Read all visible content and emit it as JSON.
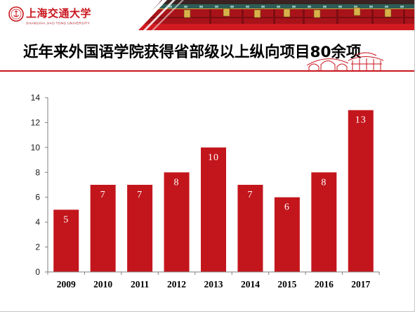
{
  "header": {
    "logo": {
      "name_cn": "上海交通大学",
      "name_en": "SHANGHAI JIAO TONG UNIVERSITY"
    }
  },
  "colors": {
    "brand_red": "#c8161d",
    "bar": "#c3161c",
    "title_text": "#000000"
  },
  "chart_data": {
    "type": "bar",
    "title": "近年来外国语学院获得省部级以上纵向项目80余项",
    "categories": [
      "2009",
      "2010",
      "2011",
      "2012",
      "2013",
      "2014",
      "2015",
      "2016",
      "2017"
    ],
    "values": [
      5,
      7,
      7,
      8,
      10,
      7,
      6,
      8,
      13
    ],
    "xlabel": "",
    "ylabel": "",
    "ylim": [
      0,
      14
    ],
    "yticks": [
      0,
      2,
      4,
      6,
      8,
      10,
      12,
      14
    ],
    "grid": false,
    "legend": false,
    "data_labels": true
  }
}
